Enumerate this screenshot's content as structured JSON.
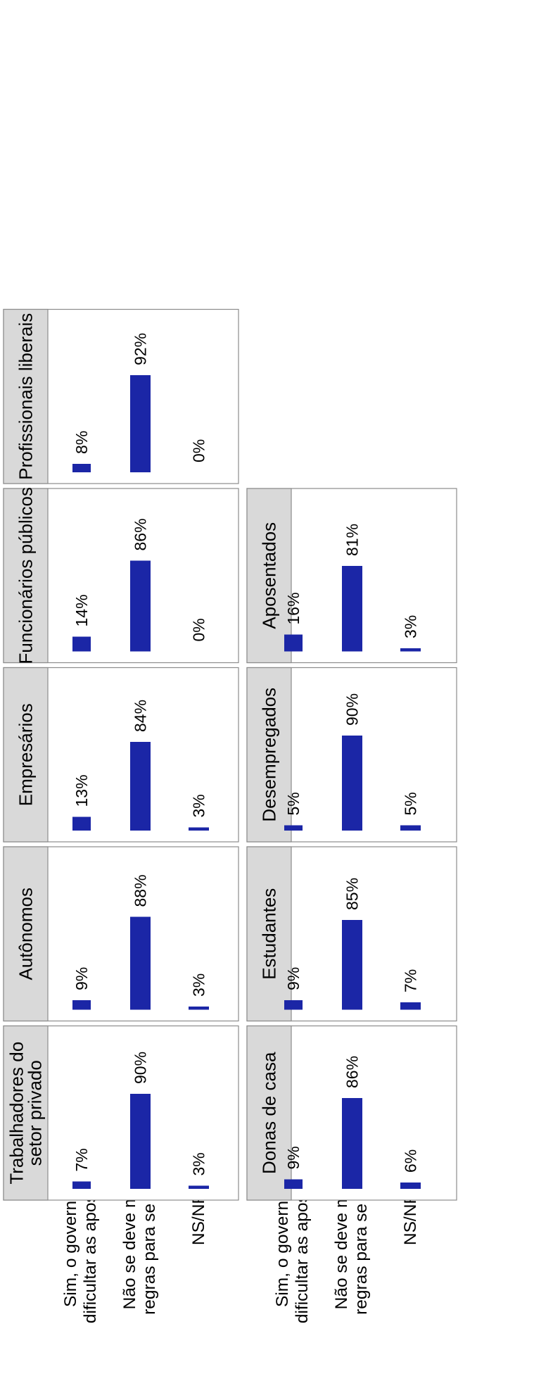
{
  "chart_data": {
    "type": "bar",
    "orientation": "rotated 90° counter-clockwise (faceted small multiples)",
    "categories": [
      [
        "Sim, o governo deveria",
        "dificultar as aposentadorias"
      ],
      [
        "Não se deve mexer nas",
        "regras para se aposentar"
      ],
      [
        "NS/NR"
      ]
    ],
    "value_suffix": "%",
    "ylim": [
      0,
      100
    ],
    "grid": false,
    "legend": "none",
    "bar_color": "#1b26a6",
    "panels": [
      {
        "title": [
          "Trabalhadores do",
          "setor privado"
        ],
        "values": [
          7,
          90,
          3
        ]
      },
      {
        "title": [
          "Autônomos"
        ],
        "values": [
          9,
          88,
          3
        ]
      },
      {
        "title": [
          "Empresários"
        ],
        "values": [
          13,
          84,
          3
        ]
      },
      {
        "title": [
          "Funcionários públicos"
        ],
        "values": [
          14,
          86,
          0
        ]
      },
      {
        "title": [
          "Profissionais liberais"
        ],
        "values": [
          8,
          92,
          0
        ]
      },
      {
        "title": [
          "Donas de casa"
        ],
        "values": [
          9,
          86,
          6
        ]
      },
      {
        "title": [
          "Estudantes"
        ],
        "values": [
          9,
          85,
          7
        ]
      },
      {
        "title": [
          "Desempregados"
        ],
        "values": [
          5,
          90,
          5
        ]
      },
      {
        "title": [
          "Aposentados"
        ],
        "values": [
          16,
          81,
          3
        ]
      }
    ]
  }
}
